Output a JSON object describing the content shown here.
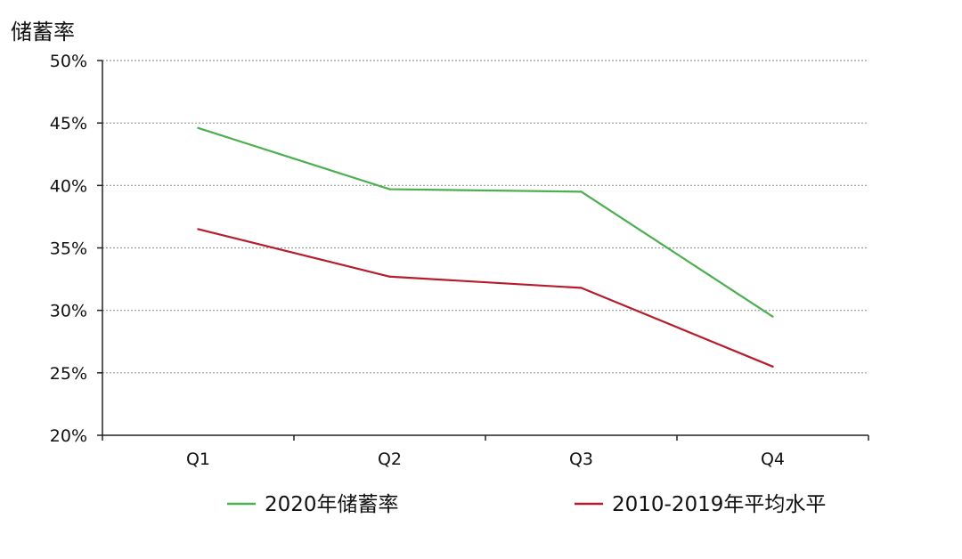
{
  "chart_data": {
    "type": "line",
    "title": "",
    "ylabel": "储蓄率",
    "xlabel": "",
    "categories": [
      "Q1",
      "Q2",
      "Q3",
      "Q4"
    ],
    "ylim": [
      20,
      50
    ],
    "yticks": [
      "20%",
      "25%",
      "30%",
      "35%",
      "40%",
      "45%",
      "50%"
    ],
    "grid": true,
    "legend_position": "bottom",
    "series": [
      {
        "name": "2020年储蓄率",
        "color": "#4caf50",
        "values": [
          44.6,
          39.7,
          39.5,
          29.5
        ]
      },
      {
        "name": "2010-2019年平均水平",
        "color": "#b71c2c",
        "values": [
          36.5,
          32.7,
          31.8,
          25.5
        ]
      }
    ]
  }
}
